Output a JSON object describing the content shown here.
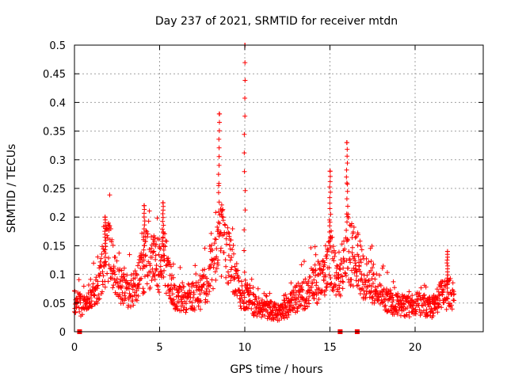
{
  "chart_data": {
    "type": "scatter",
    "title": "Day 237 of 2021, SRMTID for receiver mtdn",
    "xlabel": "GPS time / hours",
    "ylabel": "SRMTID / TECUs",
    "xlim": [
      0,
      24
    ],
    "ylim": [
      0,
      0.5
    ],
    "x_ticks": [
      0,
      5,
      10,
      15,
      20
    ],
    "x_tick_labels": [
      "0",
      "5",
      "10",
      "15",
      "20"
    ],
    "y_ticks": [
      0,
      0.05,
      0.1,
      0.15,
      0.2,
      0.25,
      0.3,
      0.35,
      0.4,
      0.45,
      0.5
    ],
    "y_tick_labels": [
      "0",
      "0.05",
      "0.1",
      "0.15",
      "0.2",
      "0.25",
      "0.3",
      "0.35",
      "0.4",
      "0.45",
      "0.5"
    ],
    "grid": true,
    "marker": "+",
    "color": "#ff0000",
    "series": [
      {
        "name": "SRMTID",
        "envelope_x": [
          0,
          0.3,
          0.5,
          1,
          1.5,
          1.8,
          2,
          2.5,
          3,
          3.5,
          4,
          4.2,
          4.5,
          5,
          5.3,
          5.5,
          6,
          6.5,
          7,
          7.5,
          8,
          8.3,
          8.5,
          8.8,
          9,
          9.3,
          9.5,
          9.8,
          10,
          10.2,
          10.5,
          11,
          11.5,
          12,
          12.5,
          13,
          13.5,
          14,
          14.5,
          14.8,
          15,
          15.3,
          15.6,
          15.9,
          16,
          16.3,
          16.6,
          17,
          17.5,
          18,
          18.5,
          19,
          19.5,
          20,
          20.5,
          21,
          21.5,
          22,
          22.3
        ],
        "envelope_y": [
          0.06,
          0.05,
          0.045,
          0.06,
          0.09,
          0.13,
          0.15,
          0.09,
          0.075,
          0.075,
          0.11,
          0.14,
          0.13,
          0.12,
          0.14,
          0.1,
          0.065,
          0.06,
          0.065,
          0.07,
          0.11,
          0.15,
          0.17,
          0.16,
          0.14,
          0.12,
          0.09,
          0.07,
          0.06,
          0.065,
          0.05,
          0.04,
          0.04,
          0.035,
          0.045,
          0.06,
          0.07,
          0.085,
          0.09,
          0.11,
          0.15,
          0.1,
          0.105,
          0.13,
          0.16,
          0.14,
          0.13,
          0.1,
          0.09,
          0.07,
          0.055,
          0.05,
          0.045,
          0.05,
          0.05,
          0.045,
          0.065,
          0.07,
          0.065
        ],
        "peaks": [
          {
            "x": 1.8,
            "y": 0.2
          },
          {
            "x": 4.1,
            "y": 0.22
          },
          {
            "x": 5.2,
            "y": 0.225
          },
          {
            "x": 8.5,
            "y": 0.38
          },
          {
            "x": 10.0,
            "y": 0.5
          },
          {
            "x": 15.0,
            "y": 0.28
          },
          {
            "x": 16.0,
            "y": 0.33
          },
          {
            "x": 21.9,
            "y": 0.14
          }
        ]
      }
    ],
    "zero_markers_x": [
      0.3,
      15.6,
      16.6
    ]
  }
}
